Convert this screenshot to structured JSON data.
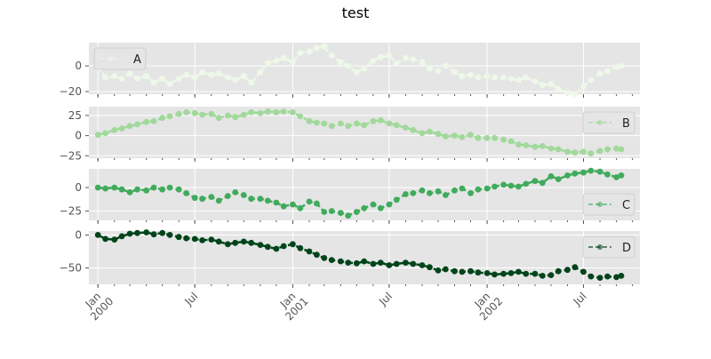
{
  "title": "test",
  "colors": {
    "panel_bg": "#e5e5e5",
    "grid": "#ffffff",
    "tick_text": "#555555",
    "tick_mark": "#555555"
  },
  "chart_data": {
    "type": "line",
    "title": "test",
    "subplots": 4,
    "shared_x": true,
    "grid": true,
    "xlim": [
      "1999-12-15",
      "2002-10-15"
    ],
    "x_major_ticks": [
      {
        "date": "2000-01-01",
        "line1": "Jan",
        "line2": "2000"
      },
      {
        "date": "2000-07-01",
        "line1": "Jul",
        "line2": ""
      },
      {
        "date": "2001-01-01",
        "line1": "Jan",
        "line2": "2001"
      },
      {
        "date": "2001-07-01",
        "line1": "Jul",
        "line2": ""
      },
      {
        "date": "2002-01-01",
        "line1": "Jan",
        "line2": "2002"
      },
      {
        "date": "2002-07-01",
        "line1": "Jul",
        "line2": ""
      }
    ],
    "series": [
      {
        "name": "A",
        "color": "#edf8e9",
        "legend": "top-left",
        "ylim": [
          -22,
          18
        ],
        "yticks": [
          0,
          -20
        ],
        "points": [
          [
            "2000-01-01",
            0
          ],
          [
            "2000-01-15",
            -9
          ],
          [
            "2000-02-01",
            -8
          ],
          [
            "2000-02-15",
            -10
          ],
          [
            "2000-03-01",
            -6
          ],
          [
            "2000-03-15",
            -10
          ],
          [
            "2000-04-01",
            -8
          ],
          [
            "2000-04-15",
            -13
          ],
          [
            "2000-05-01",
            -10
          ],
          [
            "2000-05-15",
            -14
          ],
          [
            "2000-06-01",
            -10
          ],
          [
            "2000-06-15",
            -7
          ],
          [
            "2000-07-01",
            -9
          ],
          [
            "2000-07-15",
            -5
          ],
          [
            "2000-08-01",
            -7
          ],
          [
            "2000-08-15",
            -6
          ],
          [
            "2000-09-01",
            -9
          ],
          [
            "2000-09-15",
            -11
          ],
          [
            "2000-10-01",
            -8
          ],
          [
            "2000-10-15",
            -13
          ],
          [
            "2000-11-01",
            -5
          ],
          [
            "2000-11-15",
            2
          ],
          [
            "2000-12-01",
            4
          ],
          [
            "2000-12-15",
            6
          ],
          [
            "2001-01-01",
            3
          ],
          [
            "2001-01-15",
            10
          ],
          [
            "2001-02-01",
            11
          ],
          [
            "2001-02-15",
            14
          ],
          [
            "2001-03-01",
            15
          ],
          [
            "2001-03-15",
            8
          ],
          [
            "2001-04-01",
            3
          ],
          [
            "2001-04-15",
            0
          ],
          [
            "2001-05-01",
            -5
          ],
          [
            "2001-05-15",
            -2
          ],
          [
            "2001-06-01",
            4
          ],
          [
            "2001-06-15",
            7
          ],
          [
            "2001-07-01",
            8
          ],
          [
            "2001-07-15",
            2
          ],
          [
            "2001-08-01",
            6
          ],
          [
            "2001-08-15",
            5
          ],
          [
            "2001-09-01",
            3
          ],
          [
            "2001-09-15",
            -2
          ],
          [
            "2001-10-01",
            -4
          ],
          [
            "2001-10-15",
            0
          ],
          [
            "2001-11-01",
            -5
          ],
          [
            "2001-11-15",
            -8
          ],
          [
            "2001-12-01",
            -7
          ],
          [
            "2001-12-15",
            -9
          ],
          [
            "2002-01-01",
            -8
          ],
          [
            "2002-01-15",
            -9
          ],
          [
            "2002-02-01",
            -9
          ],
          [
            "2002-02-15",
            -10
          ],
          [
            "2002-03-01",
            -11
          ],
          [
            "2002-03-15",
            -9
          ],
          [
            "2002-04-01",
            -12
          ],
          [
            "2002-04-15",
            -15
          ],
          [
            "2002-05-01",
            -14
          ],
          [
            "2002-05-15",
            -18
          ],
          [
            "2002-06-01",
            -21
          ],
          [
            "2002-06-15",
            -22
          ],
          [
            "2002-07-01",
            -16
          ],
          [
            "2002-07-15",
            -11
          ],
          [
            "2002-08-01",
            -6
          ],
          [
            "2002-08-15",
            -4
          ],
          [
            "2002-09-01",
            -1
          ],
          [
            "2002-09-10",
            0
          ]
        ]
      },
      {
        "name": "B",
        "color": "#a1d99b",
        "legend": "top-right",
        "ylim": [
          -28,
          36
        ],
        "yticks": [
          25,
          0,
          -25
        ],
        "points": [
          [
            "2000-01-01",
            1
          ],
          [
            "2000-01-15",
            3
          ],
          [
            "2000-02-01",
            7
          ],
          [
            "2000-02-15",
            9
          ],
          [
            "2000-03-01",
            12
          ],
          [
            "2000-03-15",
            14
          ],
          [
            "2000-04-01",
            17
          ],
          [
            "2000-04-15",
            18
          ],
          [
            "2000-05-01",
            22
          ],
          [
            "2000-05-15",
            24
          ],
          [
            "2000-06-01",
            27
          ],
          [
            "2000-06-15",
            29
          ],
          [
            "2000-07-01",
            28
          ],
          [
            "2000-07-15",
            26
          ],
          [
            "2000-08-01",
            27
          ],
          [
            "2000-08-15",
            22
          ],
          [
            "2000-09-01",
            25
          ],
          [
            "2000-09-15",
            23
          ],
          [
            "2000-10-01",
            26
          ],
          [
            "2000-10-15",
            29
          ],
          [
            "2000-11-01",
            28
          ],
          [
            "2000-11-15",
            30
          ],
          [
            "2000-12-01",
            29
          ],
          [
            "2000-12-15",
            30
          ],
          [
            "2001-01-01",
            29
          ],
          [
            "2001-01-15",
            24
          ],
          [
            "2001-02-01",
            18
          ],
          [
            "2001-02-15",
            16
          ],
          [
            "2001-03-01",
            15
          ],
          [
            "2001-03-15",
            12
          ],
          [
            "2001-04-01",
            15
          ],
          [
            "2001-04-15",
            12
          ],
          [
            "2001-05-01",
            15
          ],
          [
            "2001-05-15",
            13
          ],
          [
            "2001-06-01",
            18
          ],
          [
            "2001-06-15",
            19
          ],
          [
            "2001-07-01",
            15
          ],
          [
            "2001-07-15",
            13
          ],
          [
            "2001-08-01",
            10
          ],
          [
            "2001-08-15",
            7
          ],
          [
            "2001-09-01",
            3
          ],
          [
            "2001-09-15",
            5
          ],
          [
            "2001-10-01",
            2
          ],
          [
            "2001-10-15",
            -1
          ],
          [
            "2001-11-01",
            0
          ],
          [
            "2001-11-15",
            -2
          ],
          [
            "2001-12-01",
            1
          ],
          [
            "2001-12-15",
            -3
          ],
          [
            "2002-01-01",
            -3
          ],
          [
            "2002-01-15",
            -3
          ],
          [
            "2002-02-01",
            -5
          ],
          [
            "2002-02-15",
            -7
          ],
          [
            "2002-03-01",
            -11
          ],
          [
            "2002-03-15",
            -12
          ],
          [
            "2002-04-01",
            -14
          ],
          [
            "2002-04-15",
            -13
          ],
          [
            "2002-05-01",
            -16
          ],
          [
            "2002-05-15",
            -17
          ],
          [
            "2002-06-01",
            -20
          ],
          [
            "2002-06-15",
            -21
          ],
          [
            "2002-07-01",
            -20
          ],
          [
            "2002-07-15",
            -22
          ],
          [
            "2002-08-01",
            -19
          ],
          [
            "2002-08-15",
            -17
          ],
          [
            "2002-09-01",
            -16
          ],
          [
            "2002-09-10",
            -17
          ]
        ]
      },
      {
        "name": "C",
        "color": "#41ab5d",
        "legend": "lower-right",
        "ylim": [
          -35,
          20
        ],
        "yticks": [
          0,
          -25
        ],
        "points": [
          [
            "2000-01-01",
            0
          ],
          [
            "2000-01-15",
            -1
          ],
          [
            "2000-02-01",
            0
          ],
          [
            "2000-02-15",
            -2
          ],
          [
            "2000-03-01",
            -5
          ],
          [
            "2000-03-15",
            -2
          ],
          [
            "2000-04-01",
            -3
          ],
          [
            "2000-04-15",
            0
          ],
          [
            "2000-05-01",
            -2
          ],
          [
            "2000-05-15",
            0
          ],
          [
            "2000-06-01",
            -2
          ],
          [
            "2000-06-15",
            -6
          ],
          [
            "2000-07-01",
            -11
          ],
          [
            "2000-07-15",
            -12
          ],
          [
            "2000-08-01",
            -10
          ],
          [
            "2000-08-15",
            -14
          ],
          [
            "2000-09-01",
            -9
          ],
          [
            "2000-09-15",
            -5
          ],
          [
            "2000-10-01",
            -8
          ],
          [
            "2000-10-15",
            -12
          ],
          [
            "2000-11-01",
            -12
          ],
          [
            "2000-11-15",
            -14
          ],
          [
            "2000-12-01",
            -16
          ],
          [
            "2000-12-15",
            -20
          ],
          [
            "2001-01-01",
            -18
          ],
          [
            "2001-01-15",
            -22
          ],
          [
            "2001-02-01",
            -15
          ],
          [
            "2001-02-15",
            -17
          ],
          [
            "2001-03-01",
            -26
          ],
          [
            "2001-03-15",
            -25
          ],
          [
            "2001-04-01",
            -27
          ],
          [
            "2001-04-15",
            -30
          ],
          [
            "2001-05-01",
            -26
          ],
          [
            "2001-05-15",
            -22
          ],
          [
            "2001-06-01",
            -18
          ],
          [
            "2001-06-15",
            -22
          ],
          [
            "2001-07-01",
            -18
          ],
          [
            "2001-07-15",
            -13
          ],
          [
            "2001-08-01",
            -7
          ],
          [
            "2001-08-15",
            -6
          ],
          [
            "2001-09-01",
            -3
          ],
          [
            "2001-09-15",
            -6
          ],
          [
            "2001-10-01",
            -4
          ],
          [
            "2001-10-15",
            -8
          ],
          [
            "2001-11-01",
            -3
          ],
          [
            "2001-11-15",
            -1
          ],
          [
            "2001-12-01",
            -6
          ],
          [
            "2001-12-15",
            -2
          ],
          [
            "2002-01-01",
            -1
          ],
          [
            "2002-01-15",
            1
          ],
          [
            "2002-02-01",
            3
          ],
          [
            "2002-02-15",
            2
          ],
          [
            "2002-03-01",
            1
          ],
          [
            "2002-03-15",
            4
          ],
          [
            "2002-04-01",
            7
          ],
          [
            "2002-04-15",
            5
          ],
          [
            "2002-05-01",
            12
          ],
          [
            "2002-05-15",
            9
          ],
          [
            "2002-06-01",
            13
          ],
          [
            "2002-06-15",
            15
          ],
          [
            "2002-07-01",
            16
          ],
          [
            "2002-07-15",
            18
          ],
          [
            "2002-08-01",
            17
          ],
          [
            "2002-08-15",
            14
          ],
          [
            "2002-09-01",
            11
          ],
          [
            "2002-09-10",
            13
          ]
        ]
      },
      {
        "name": "D",
        "color": "#00441b",
        "legend": "top-right",
        "ylim": [
          -75,
          6
        ],
        "yticks": [
          0,
          -50
        ],
        "points": [
          [
            "2000-01-01",
            0
          ],
          [
            "2000-01-15",
            -6
          ],
          [
            "2000-02-01",
            -7
          ],
          [
            "2000-02-15",
            -2
          ],
          [
            "2000-03-01",
            2
          ],
          [
            "2000-03-15",
            3
          ],
          [
            "2000-04-01",
            4
          ],
          [
            "2000-04-15",
            1
          ],
          [
            "2000-05-01",
            3
          ],
          [
            "2000-05-15",
            0
          ],
          [
            "2000-06-01",
            -3
          ],
          [
            "2000-06-15",
            -5
          ],
          [
            "2000-07-01",
            -6
          ],
          [
            "2000-07-15",
            -8
          ],
          [
            "2000-08-01",
            -7
          ],
          [
            "2000-08-15",
            -10
          ],
          [
            "2000-09-01",
            -14
          ],
          [
            "2000-09-15",
            -12
          ],
          [
            "2000-10-01",
            -10
          ],
          [
            "2000-10-15",
            -12
          ],
          [
            "2000-11-01",
            -15
          ],
          [
            "2000-11-15",
            -18
          ],
          [
            "2000-12-01",
            -21
          ],
          [
            "2000-12-15",
            -17
          ],
          [
            "2001-01-01",
            -14
          ],
          [
            "2001-01-15",
            -20
          ],
          [
            "2001-02-01",
            -25
          ],
          [
            "2001-02-15",
            -30
          ],
          [
            "2001-03-01",
            -35
          ],
          [
            "2001-03-15",
            -38
          ],
          [
            "2001-04-01",
            -40
          ],
          [
            "2001-04-15",
            -42
          ],
          [
            "2001-05-01",
            -43
          ],
          [
            "2001-05-15",
            -40
          ],
          [
            "2001-06-01",
            -44
          ],
          [
            "2001-06-15",
            -42
          ],
          [
            "2001-07-01",
            -46
          ],
          [
            "2001-07-15",
            -44
          ],
          [
            "2001-08-01",
            -42
          ],
          [
            "2001-08-15",
            -44
          ],
          [
            "2001-09-01",
            -46
          ],
          [
            "2001-09-15",
            -49
          ],
          [
            "2001-10-01",
            -54
          ],
          [
            "2001-10-15",
            -52
          ],
          [
            "2001-11-01",
            -55
          ],
          [
            "2001-11-15",
            -56
          ],
          [
            "2001-12-01",
            -55
          ],
          [
            "2001-12-15",
            -57
          ],
          [
            "2002-01-01",
            -58
          ],
          [
            "2002-01-15",
            -60
          ],
          [
            "2002-02-01",
            -59
          ],
          [
            "2002-02-15",
            -58
          ],
          [
            "2002-03-01",
            -56
          ],
          [
            "2002-03-15",
            -59
          ],
          [
            "2002-04-01",
            -59
          ],
          [
            "2002-04-15",
            -62
          ],
          [
            "2002-05-01",
            -61
          ],
          [
            "2002-05-15",
            -55
          ],
          [
            "2002-06-01",
            -53
          ],
          [
            "2002-06-15",
            -49
          ],
          [
            "2002-07-01",
            -56
          ],
          [
            "2002-07-15",
            -63
          ],
          [
            "2002-08-01",
            -65
          ],
          [
            "2002-08-15",
            -63
          ],
          [
            "2002-09-01",
            -64
          ],
          [
            "2002-09-10",
            -62
          ]
        ]
      }
    ]
  }
}
